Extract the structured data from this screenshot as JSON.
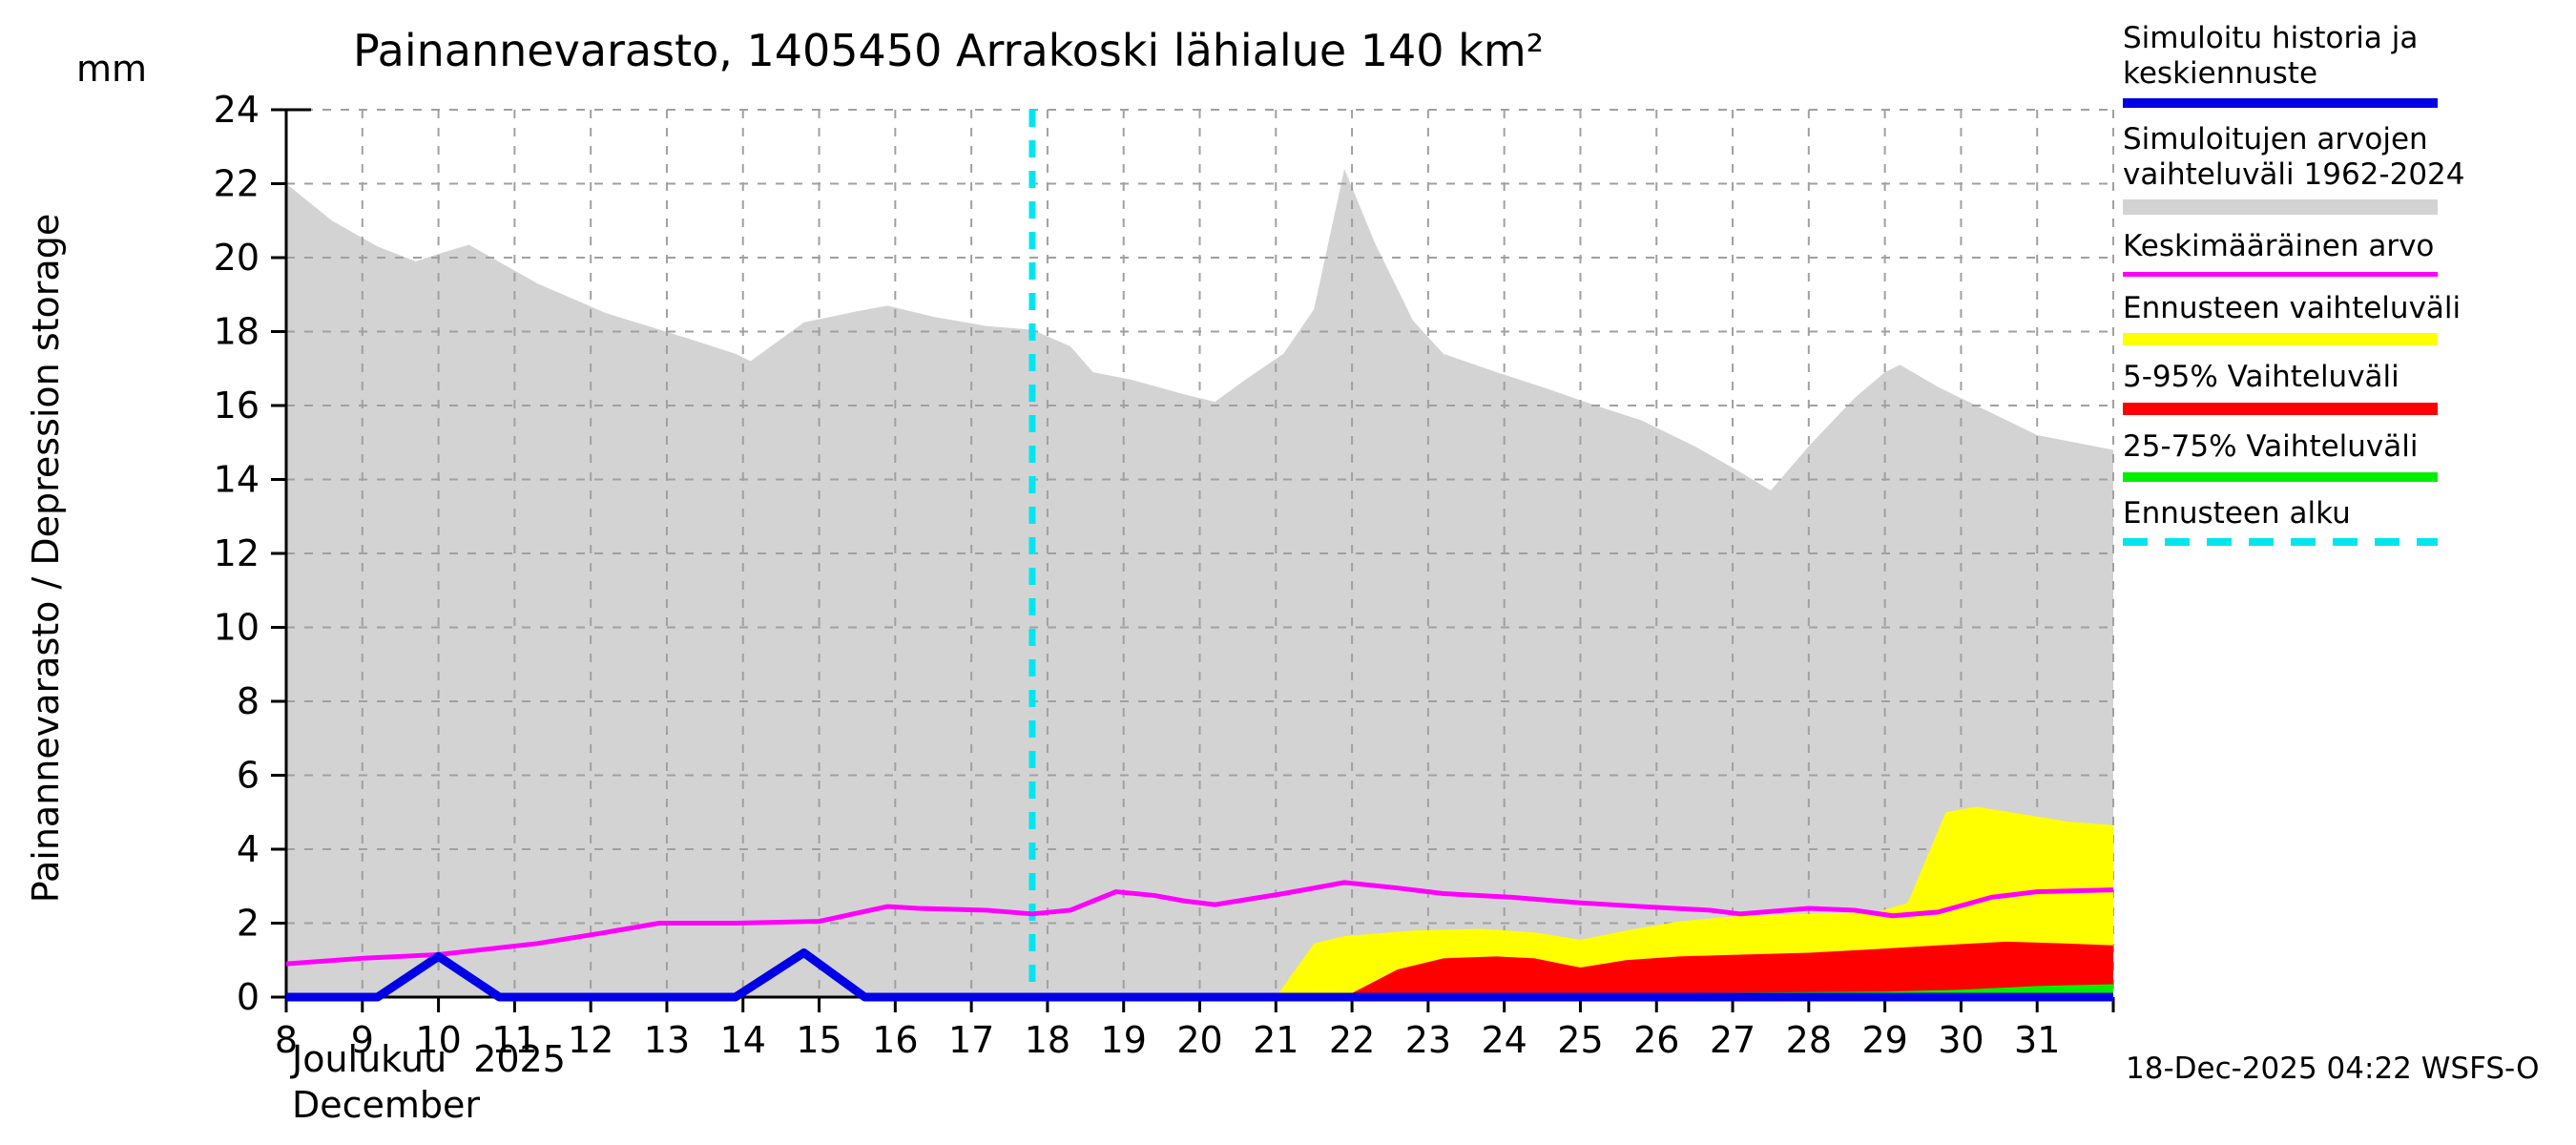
{
  "y_axis": {
    "label": "Painannevarasto / Depression storage",
    "unit": "mm"
  },
  "x_axis": {
    "month_fi": "Joulukuu",
    "year": "2025",
    "month_en": "December"
  },
  "footer": {
    "timestamp": "18-Dec-2025 04:22 WSFS-O"
  },
  "legend": {
    "items": [
      {
        "label": "Simuloitu historia ja keskiennuste",
        "style": "bar",
        "color": "#0000e6",
        "height": 10
      },
      {
        "label": "Simuloitujen arvojen vaihteluväli 1962-2024",
        "style": "bar",
        "color": "#d3d3d3",
        "height": 16
      },
      {
        "label": "Keskimääräinen arvo",
        "style": "line",
        "color": "#ff00ff",
        "height": 5
      },
      {
        "label": "Ennusteen vaihteluväli",
        "style": "bar",
        "color": "#ffff00",
        "height": 13
      },
      {
        "label": "5-95% Vaihteluväli",
        "style": "bar",
        "color": "#ff0000",
        "height": 13
      },
      {
        "label": "25-75% Vaihteluväli",
        "style": "bar",
        "color": "#00ee00",
        "height": 10
      },
      {
        "label": "Ennusteen alku",
        "style": "dashed",
        "color": "#00e5ee",
        "height": 8
      }
    ]
  },
  "chart_data": {
    "type": "area",
    "title": "Painannevarasto, 1405450 Arrakoski lähialue 140 km²",
    "ylabel": "Painannevarasto / Depression storage",
    "yunit": "mm",
    "xlim": [
      8,
      32
    ],
    "ylim": [
      0,
      24
    ],
    "xticks": [
      8,
      9,
      10,
      11,
      12,
      13,
      14,
      15,
      16,
      17,
      18,
      19,
      20,
      21,
      22,
      23,
      24,
      25,
      26,
      27,
      28,
      29,
      30,
      31
    ],
    "yticks": [
      0,
      2,
      4,
      6,
      8,
      10,
      12,
      14,
      16,
      18,
      20,
      22,
      24
    ],
    "grid": true,
    "forecast_start_x": 17.8,
    "colors": {
      "sim_range": "#d3d3d3",
      "sim_history": "#0000e6",
      "mean": "#ff00ff",
      "forecast_range": "#ffff00",
      "p5_95": "#ff0000",
      "p25_75": "#00ee00",
      "forecast_start": "#00e5ee",
      "grid": "#a0a0a0"
    },
    "series": [
      {
        "name": "sim-range-1962-2024-upper",
        "style": "band",
        "color": "#d3d3d3",
        "points": [
          [
            8,
            22.0
          ],
          [
            8.6,
            21.0
          ],
          [
            9.2,
            20.3
          ],
          [
            9.7,
            19.9
          ],
          [
            10.0,
            20.1
          ],
          [
            10.4,
            20.35
          ],
          [
            10.7,
            20.0
          ],
          [
            11.3,
            19.3
          ],
          [
            12.2,
            18.5
          ],
          [
            13.3,
            17.8
          ],
          [
            13.9,
            17.4
          ],
          [
            14.1,
            17.2
          ],
          [
            14.8,
            18.25
          ],
          [
            15.5,
            18.55
          ],
          [
            15.9,
            18.7
          ],
          [
            16.5,
            18.4
          ],
          [
            17.2,
            18.15
          ],
          [
            17.8,
            18.05
          ],
          [
            18.3,
            17.6
          ],
          [
            18.6,
            16.9
          ],
          [
            19.1,
            16.7
          ],
          [
            19.8,
            16.3
          ],
          [
            20.2,
            16.1
          ],
          [
            20.6,
            16.7
          ],
          [
            21.1,
            17.4
          ],
          [
            21.5,
            18.6
          ],
          [
            21.9,
            22.4
          ],
          [
            22.3,
            20.4
          ],
          [
            22.8,
            18.3
          ],
          [
            23.2,
            17.4
          ],
          [
            23.9,
            16.9
          ],
          [
            24.5,
            16.5
          ],
          [
            25.2,
            16.0
          ],
          [
            25.8,
            15.6
          ],
          [
            26.5,
            14.9
          ],
          [
            27.1,
            14.2
          ],
          [
            27.5,
            13.7
          ],
          [
            28.0,
            14.9
          ],
          [
            28.6,
            16.2
          ],
          [
            29.0,
            16.9
          ],
          [
            29.2,
            17.1
          ],
          [
            29.7,
            16.5
          ],
          [
            30.4,
            15.8
          ],
          [
            31.0,
            15.2
          ],
          [
            32.0,
            14.8
          ]
        ]
      },
      {
        "name": "forecast-range-upper",
        "style": "band",
        "color": "#ffff00",
        "points": [
          [
            21.0,
            0
          ],
          [
            21.5,
            1.45
          ],
          [
            21.9,
            1.65
          ],
          [
            22.8,
            1.8
          ],
          [
            23.7,
            1.85
          ],
          [
            24.4,
            1.75
          ],
          [
            25.0,
            1.55
          ],
          [
            25.6,
            1.8
          ],
          [
            26.3,
            2.05
          ],
          [
            27.1,
            2.2
          ],
          [
            28.0,
            2.25
          ],
          [
            28.9,
            2.3
          ],
          [
            29.3,
            2.55
          ],
          [
            29.8,
            5.0
          ],
          [
            30.2,
            5.15
          ],
          [
            30.8,
            4.95
          ],
          [
            31.4,
            4.75
          ],
          [
            32.0,
            4.65
          ]
        ]
      },
      {
        "name": "p5-95-upper",
        "style": "band",
        "color": "#ff0000",
        "points": [
          [
            21.9,
            0
          ],
          [
            22.6,
            0.75
          ],
          [
            23.2,
            1.05
          ],
          [
            23.9,
            1.1
          ],
          [
            24.4,
            1.05
          ],
          [
            25.0,
            0.8
          ],
          [
            25.6,
            1.0
          ],
          [
            26.3,
            1.1
          ],
          [
            27.1,
            1.15
          ],
          [
            28.0,
            1.2
          ],
          [
            28.9,
            1.3
          ],
          [
            29.7,
            1.4
          ],
          [
            30.6,
            1.5
          ],
          [
            31.4,
            1.45
          ],
          [
            32.0,
            1.4
          ]
        ]
      },
      {
        "name": "p25-75-upper",
        "style": "band",
        "color": "#00ee00",
        "points": [
          [
            21.9,
            0
          ],
          [
            23.0,
            0.1
          ],
          [
            25.0,
            0.1
          ],
          [
            27.0,
            0.12
          ],
          [
            29.0,
            0.15
          ],
          [
            30.0,
            0.2
          ],
          [
            31.0,
            0.3
          ],
          [
            32.0,
            0.35
          ]
        ]
      },
      {
        "name": "mean-value",
        "style": "line",
        "color": "#ff00ff",
        "width": 5,
        "points": [
          [
            8,
            0.9
          ],
          [
            9,
            1.05
          ],
          [
            10,
            1.15
          ],
          [
            11.3,
            1.45
          ],
          [
            12.2,
            1.75
          ],
          [
            12.9,
            2.0
          ],
          [
            13.9,
            2.0
          ],
          [
            15.0,
            2.05
          ],
          [
            15.9,
            2.45
          ],
          [
            16.3,
            2.4
          ],
          [
            17.2,
            2.35
          ],
          [
            17.8,
            2.25
          ],
          [
            18.3,
            2.35
          ],
          [
            18.9,
            2.85
          ],
          [
            19.4,
            2.75
          ],
          [
            19.8,
            2.6
          ],
          [
            20.2,
            2.5
          ],
          [
            21.1,
            2.8
          ],
          [
            21.9,
            3.1
          ],
          [
            22.6,
            2.95
          ],
          [
            23.2,
            2.8
          ],
          [
            24.1,
            2.7
          ],
          [
            25.0,
            2.55
          ],
          [
            25.8,
            2.45
          ],
          [
            26.7,
            2.35
          ],
          [
            27.1,
            2.25
          ],
          [
            28.0,
            2.4
          ],
          [
            28.6,
            2.35
          ],
          [
            29.1,
            2.2
          ],
          [
            29.7,
            2.3
          ],
          [
            30.4,
            2.7
          ],
          [
            31.0,
            2.85
          ],
          [
            32.0,
            2.9
          ]
        ]
      },
      {
        "name": "sim-history-and-mean-forecast",
        "style": "line",
        "color": "#0000e6",
        "width": 9,
        "points": [
          [
            8,
            0
          ],
          [
            9.2,
            0
          ],
          [
            10.0,
            1.1
          ],
          [
            10.8,
            0
          ],
          [
            13.9,
            0
          ],
          [
            14.8,
            1.2
          ],
          [
            15.6,
            0
          ],
          [
            32.0,
            0
          ]
        ]
      }
    ]
  }
}
